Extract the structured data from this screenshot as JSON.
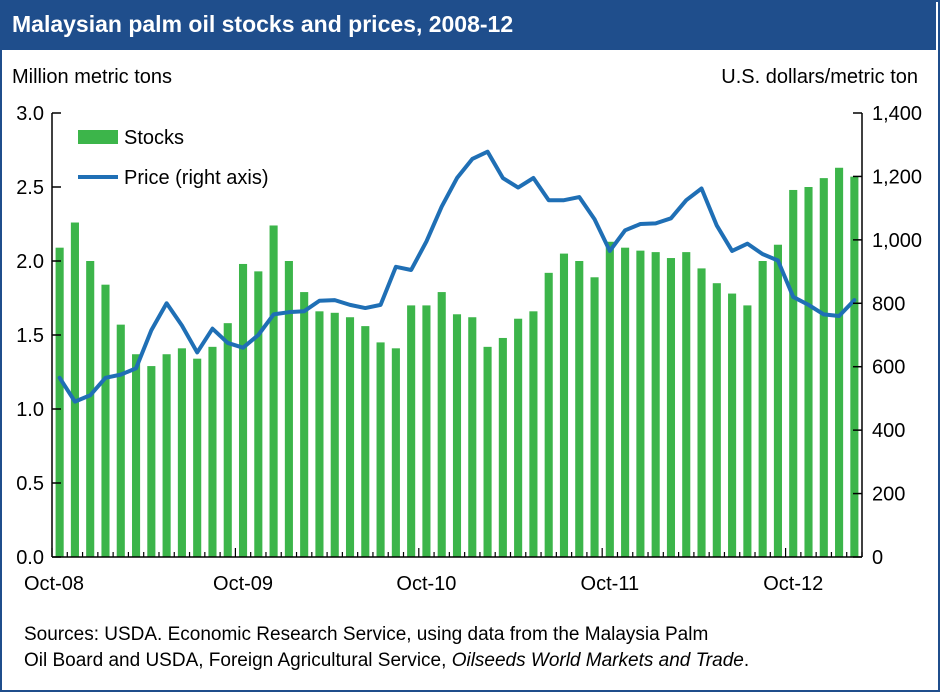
{
  "title": "Malaysian palm oil stocks and prices, 2008-12",
  "y_left_unit": "Million metric tons",
  "y_right_unit": "U.S. dollars/metric ton",
  "source": {
    "line1": "Sources: USDA. Economic Research Service, using data from the Malaysia Palm",
    "line2_prefix": "Oil Board and USDA, Foreign Agricultural Service, ",
    "line2_italic": "Oilseeds World Markets and Trade",
    "line2_suffix": "."
  },
  "colors": {
    "title_bar": "#1f4e8c",
    "bars": "#3cb54a",
    "line": "#1f6fb5",
    "axis": "#000000"
  },
  "chart_data": {
    "type": "bar+line",
    "x_ticks": [
      "Oct-08",
      "Oct-09",
      "Oct-10",
      "Oct-11",
      "Oct-12"
    ],
    "x_tick_indices": [
      0,
      12,
      24,
      36,
      48
    ],
    "y_left": {
      "min": 0,
      "max": 3.0,
      "ticks": [
        "0.0",
        "0.5",
        "1.0",
        "1.5",
        "2.0",
        "2.5",
        "3.0"
      ]
    },
    "y_right": {
      "min": 0,
      "max": 1400,
      "ticks": [
        "0",
        "200",
        "400",
        "600",
        "800",
        "1,000",
        "1,200",
        "1,400"
      ]
    },
    "series": [
      {
        "name": "Stocks",
        "kind": "bar",
        "axis": "left",
        "values": [
          2.09,
          2.26,
          2.0,
          1.84,
          1.57,
          1.37,
          1.29,
          1.37,
          1.41,
          1.34,
          1.42,
          1.58,
          1.98,
          1.93,
          2.24,
          2.0,
          1.79,
          1.66,
          1.65,
          1.62,
          1.56,
          1.45,
          1.41,
          1.7,
          1.7,
          1.79,
          1.64,
          1.62,
          1.42,
          1.48,
          1.61,
          1.66,
          1.92,
          2.05,
          2.0,
          1.89,
          2.13,
          2.09,
          2.07,
          2.06,
          2.02,
          2.06,
          1.95,
          1.85,
          1.78,
          1.7,
          2.0,
          2.11,
          2.48,
          2.5,
          2.56,
          2.63,
          2.57
        ]
      },
      {
        "name": "Price (right axis)",
        "kind": "line",
        "axis": "right",
        "values": [
          565,
          490,
          510,
          565,
          575,
          595,
          715,
          800,
          730,
          645,
          720,
          675,
          660,
          700,
          765,
          772,
          775,
          808,
          810,
          795,
          785,
          795,
          915,
          905,
          995,
          1105,
          1195,
          1255,
          1278,
          1195,
          1165,
          1195,
          1125,
          1125,
          1135,
          1065,
          965,
          1030,
          1050,
          1052,
          1068,
          1125,
          1162,
          1045,
          965,
          988,
          955,
          935,
          820,
          795,
          765,
          760,
          810
        ]
      }
    ],
    "legend_position": "top-left",
    "grid": false
  }
}
